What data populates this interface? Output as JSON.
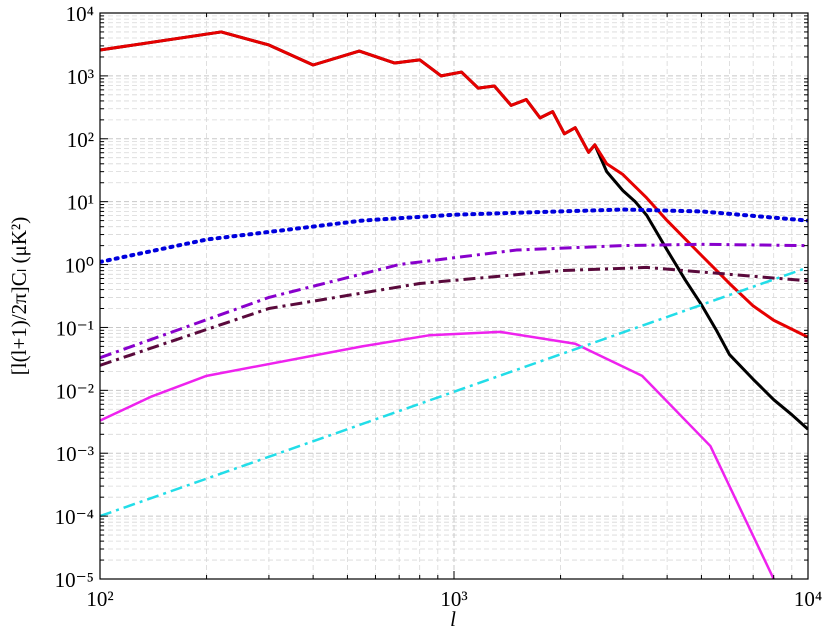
{
  "chart_data": {
    "type": "line",
    "xlabel": "l",
    "ylabel": "[l(l+1)/2π]Cₗ (μK²)",
    "xscale": "log",
    "yscale": "log",
    "xlim": [
      100,
      10000
    ],
    "ylim": [
      1e-05,
      10000
    ],
    "xticks": [
      {
        "value": 100,
        "label": "10²"
      },
      {
        "value": 1000,
        "label": "10³"
      },
      {
        "value": 10000,
        "label": "10⁴"
      }
    ],
    "yticks": [
      {
        "value": 1e-05,
        "label": "10⁻⁵"
      },
      {
        "value": 0.0001,
        "label": "10⁻⁴"
      },
      {
        "value": 0.001,
        "label": "10⁻³"
      },
      {
        "value": 0.01,
        "label": "10⁻²"
      },
      {
        "value": 0.1,
        "label": "10⁻¹"
      },
      {
        "value": 1,
        "label": "10⁰"
      },
      {
        "value": 10,
        "label": "10¹"
      },
      {
        "value": 100,
        "label": "10²"
      },
      {
        "value": 1000,
        "label": "10³"
      },
      {
        "value": 10000,
        "label": "10⁴"
      }
    ],
    "grid": true,
    "series": [
      {
        "color": "#000000",
        "style": "solid",
        "width": 3,
        "x": [
          100,
          220,
          300,
          400,
          540,
          680,
          800,
          920,
          1050,
          1170,
          1300,
          1450,
          1600,
          1750,
          1900,
          2050,
          2200,
          2400,
          2500,
          2700,
          3000,
          3250,
          3500,
          4000,
          4500,
          5000,
          5500,
          6000,
          7000,
          8000,
          9000,
          10000
        ],
        "values": [
          2580,
          5000,
          3100,
          1490,
          2480,
          1600,
          1800,
          1000,
          1150,
          640,
          690,
          340,
          420,
          215,
          270,
          120,
          150,
          61,
          80,
          30,
          15,
          10,
          6.1,
          1.7,
          0.57,
          0.23,
          0.092,
          0.037,
          0.015,
          0.0071,
          0.0041,
          0.0024
        ]
      },
      {
        "color": "#e60000",
        "style": "solid",
        "width": 3,
        "x": [
          100,
          220,
          300,
          400,
          540,
          680,
          800,
          920,
          1050,
          1170,
          1300,
          1450,
          1600,
          1750,
          1900,
          2050,
          2200,
          2400,
          2500,
          2700,
          3000,
          3500,
          4000,
          5000,
          6000,
          7000,
          8000,
          10000
        ],
        "values": [
          2580,
          5000,
          3100,
          1490,
          2480,
          1600,
          1800,
          1000,
          1150,
          640,
          690,
          340,
          420,
          215,
          270,
          120,
          150,
          61,
          80,
          40,
          27,
          11.5,
          5,
          1.4,
          0.5,
          0.22,
          0.13,
          0.07
        ]
      },
      {
        "color": "#0000dd",
        "style": "dotted",
        "width": 4,
        "x": [
          100,
          200,
          550,
          1000,
          2000,
          3000,
          5000,
          10000
        ],
        "values": [
          1.1,
          2.5,
          5,
          6.2,
          7,
          7.5,
          7,
          5
        ]
      },
      {
        "color": "#8800cc",
        "style": "dashdot",
        "width": 3,
        "x": [
          100,
          300,
          700,
          1500,
          3000,
          5000,
          10000
        ],
        "values": [
          0.033,
          0.3,
          1.0,
          1.7,
          2.0,
          2.1,
          2.0
        ]
      },
      {
        "color": "#5a0a3c",
        "style": "dashdot",
        "width": 3,
        "x": [
          100,
          300,
          800,
          2000,
          3500,
          6000,
          10000
        ],
        "values": [
          0.025,
          0.2,
          0.5,
          0.8,
          0.9,
          0.7,
          0.55
        ]
      },
      {
        "color": "#ee22ee",
        "style": "solid",
        "width": 2.5,
        "x": [
          100,
          140,
          200,
          550,
          850,
          1350,
          2200,
          3400,
          5300,
          8000
        ],
        "values": [
          0.0033,
          0.008,
          0.017,
          0.05,
          0.075,
          0.085,
          0.055,
          0.017,
          0.0013,
          1e-05
        ]
      },
      {
        "color": "#22dde8",
        "style": "dashdot",
        "width": 2.5,
        "x": [
          100,
          10000
        ],
        "values": [
          0.0001,
          0.9
        ]
      }
    ]
  }
}
